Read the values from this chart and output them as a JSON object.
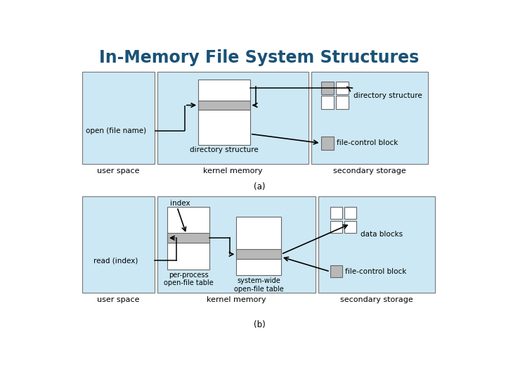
{
  "title": "In-Memory File System Structures",
  "title_color": "#1a5276",
  "title_fontsize": 17,
  "bg_color": "#ffffff",
  "panel_bg": "#cce8f4",
  "box_white": "#ffffff",
  "box_gray": "#b8b8b8",
  "panel_border": "#777777",
  "diagram_a": {
    "label": "(a)",
    "user_space_label": "user space",
    "kernel_memory_label": "kernel memory",
    "secondary_storage_label": "secondary storage",
    "open_label": "open (file name)",
    "dir_struct_label": "directory structure",
    "dir_struct_sec_label": "directory structure",
    "fcb_label": "file-control block"
  },
  "diagram_b": {
    "label": "(b)",
    "user_space_label": "user space",
    "kernel_memory_label": "kernel memory",
    "secondary_storage_label": "secondary storage",
    "read_label": "read (index)",
    "index_label": "index",
    "per_process_label": "per-process\nopen-file table",
    "system_wide_label": "system-wide\nopen-file table",
    "data_blocks_label": "data blocks",
    "fcb_label": "file-control block"
  }
}
